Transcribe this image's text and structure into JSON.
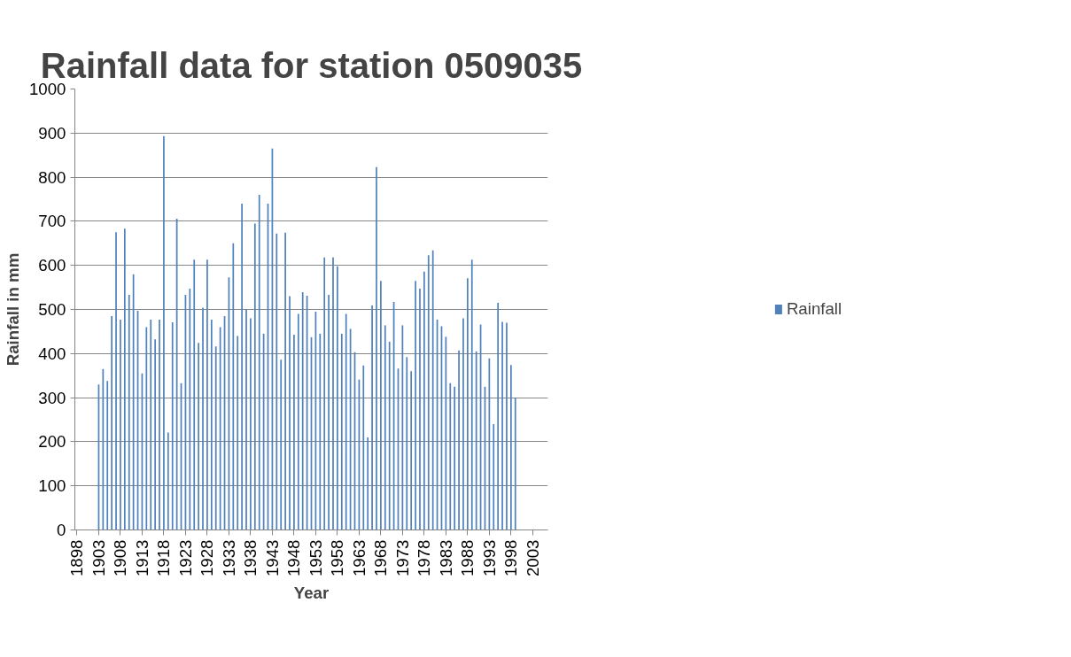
{
  "chart_data": {
    "type": "bar",
    "title": "Rainfall data for station 0509035",
    "xlabel": "Year",
    "ylabel": "Rainfall in mm",
    "x": [
      1903,
      1904,
      1905,
      1906,
      1907,
      1908,
      1909,
      1910,
      1911,
      1912,
      1913,
      1914,
      1915,
      1916,
      1917,
      1918,
      1919,
      1920,
      1921,
      1922,
      1923,
      1924,
      1925,
      1926,
      1927,
      1928,
      1929,
      1930,
      1931,
      1932,
      1933,
      1934,
      1935,
      1936,
      1937,
      1938,
      1939,
      1940,
      1941,
      1942,
      1943,
      1944,
      1945,
      1946,
      1947,
      1948,
      1949,
      1950,
      1951,
      1952,
      1953,
      1954,
      1955,
      1956,
      1957,
      1958,
      1959,
      1960,
      1961,
      1962,
      1963,
      1964,
      1965,
      1966,
      1967,
      1968,
      1969,
      1970,
      1971,
      1972,
      1973,
      1974,
      1975,
      1976,
      1977,
      1978,
      1979,
      1980,
      1981,
      1982,
      1983,
      1984,
      1985,
      1986,
      1987,
      1988,
      1989,
      1990,
      1991,
      1992,
      1993,
      1994,
      1995,
      1996,
      1997,
      1998,
      1999
    ],
    "series": [
      {
        "name": "Rainfall",
        "color": "#4f81bd",
        "values": [
          330,
          365,
          338,
          485,
          675,
          477,
          683,
          533,
          580,
          497,
          355,
          460,
          477,
          432,
          477,
          893,
          221,
          471,
          706,
          333,
          533,
          547,
          613,
          424,
          504,
          613,
          477,
          416,
          460,
          485,
          573,
          650,
          440,
          740,
          500,
          480,
          695,
          760,
          445,
          740,
          865,
          672,
          386,
          674,
          530,
          443,
          490,
          539,
          531,
          437,
          495,
          445,
          618,
          533,
          618,
          598,
          445,
          490,
          456,
          403,
          341,
          373,
          210,
          509,
          823,
          565,
          464,
          427,
          517,
          366,
          464,
          392,
          360,
          565,
          547,
          586,
          623,
          634,
          477,
          462,
          438,
          333,
          325,
          407,
          480,
          571,
          613,
          405,
          466,
          325,
          389,
          240,
          515,
          472,
          470,
          374,
          300
        ]
      }
    ],
    "xlim": [
      1897.5,
      2006.5
    ],
    "xticks": [
      1898,
      1903,
      1908,
      1913,
      1918,
      1923,
      1928,
      1933,
      1938,
      1943,
      1948,
      1953,
      1958,
      1963,
      1968,
      1973,
      1978,
      1983,
      1988,
      1993,
      1998,
      2003
    ],
    "ylim": [
      0,
      1000
    ],
    "yticks": [
      0,
      100,
      200,
      300,
      400,
      500,
      600,
      700,
      800,
      900,
      1000
    ],
    "grid": "y",
    "legend": "right"
  }
}
